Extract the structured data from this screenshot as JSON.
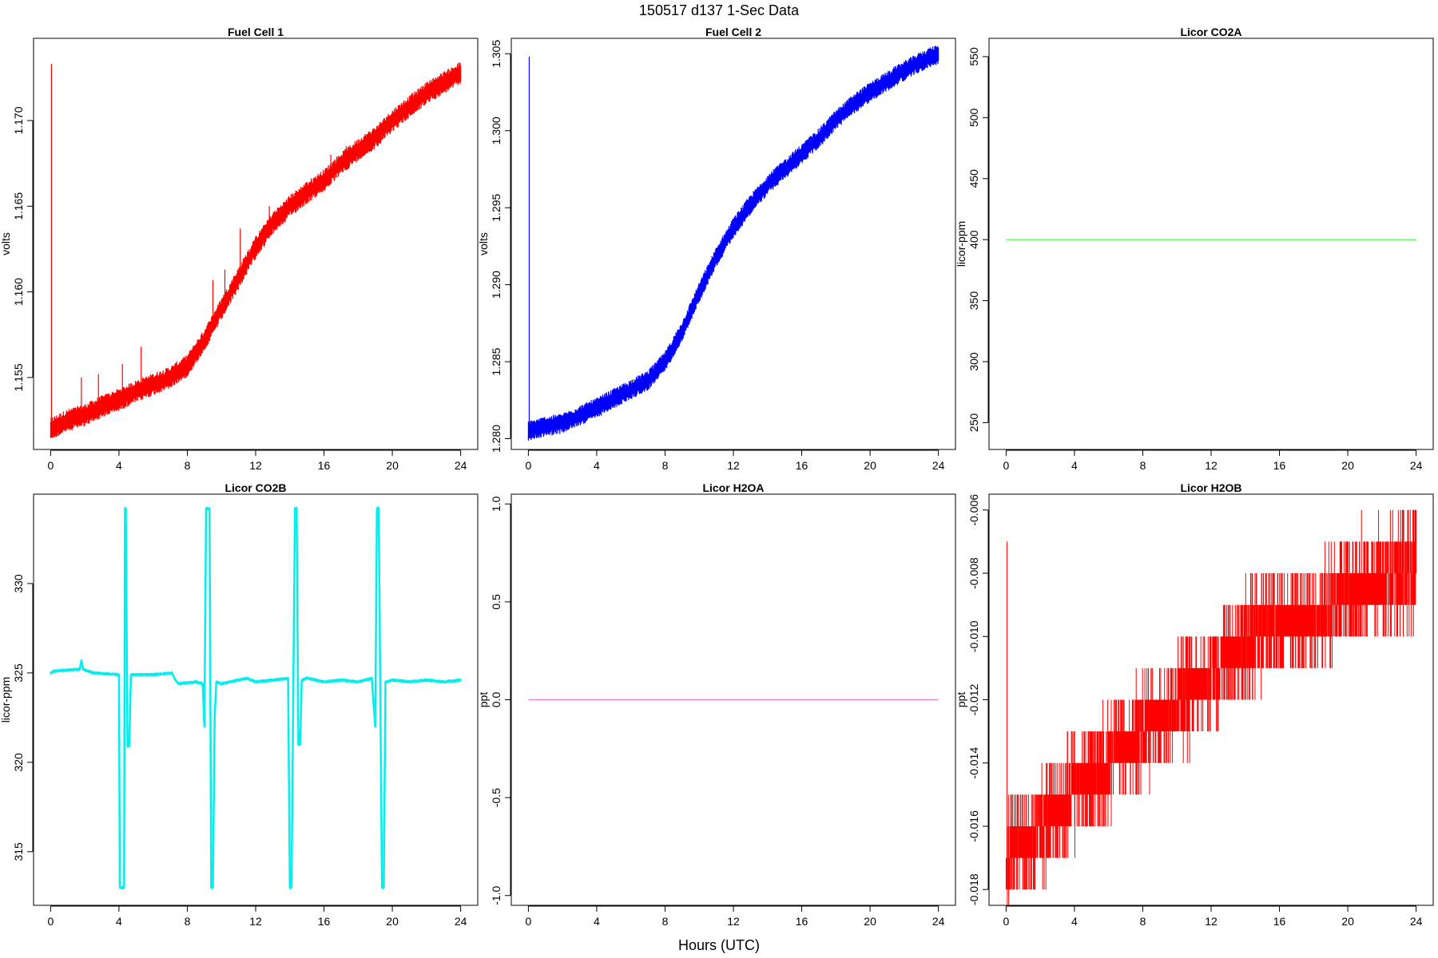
{
  "figure": {
    "title": "150517   d137   1-Sec Data",
    "xlabel": "Hours (UTC)"
  },
  "chart_data": [
    {
      "type": "line",
      "title": "Fuel Cell 1",
      "ylabel": "volts",
      "color": "#ff0000",
      "xlim": [
        -1,
        25
      ],
      "ylim": [
        1.1508,
        1.1748
      ],
      "xticks": [
        0,
        4,
        8,
        12,
        16,
        20,
        24
      ],
      "yticks": [
        1.155,
        1.16,
        1.165,
        1.17
      ],
      "yticklabels": [
        "1.155",
        "1.160",
        "1.165",
        "1.170"
      ],
      "band": 0.0006,
      "x": [
        0,
        1,
        2,
        3,
        4,
        5,
        6,
        7,
        8,
        9,
        10,
        11,
        12,
        13,
        14,
        15,
        16,
        17,
        18,
        19,
        20,
        21,
        22,
        23,
        24
      ],
      "y": [
        1.152,
        1.1525,
        1.1528,
        1.1533,
        1.1537,
        1.1542,
        1.1546,
        1.155,
        1.1557,
        1.1572,
        1.159,
        1.1608,
        1.1626,
        1.164,
        1.165,
        1.1658,
        1.1665,
        1.1675,
        1.1683,
        1.169,
        1.17,
        1.1708,
        1.1716,
        1.1722,
        1.1728
      ],
      "spikes": [
        [
          0.05,
          1.1733
        ],
        [
          1.8,
          1.155
        ],
        [
          2.8,
          1.1552
        ],
        [
          4.2,
          1.1558
        ],
        [
          5.3,
          1.1568
        ],
        [
          9.5,
          1.1607
        ],
        [
          10.2,
          1.1613
        ],
        [
          11.1,
          1.1637
        ],
        [
          12.8,
          1.165
        ],
        [
          16.4,
          1.168
        ],
        [
          17.3,
          1.1685
        ],
        [
          19.4,
          1.1696
        ]
      ]
    },
    {
      "type": "line",
      "title": "Fuel Cell 2",
      "ylabel": "volts",
      "color": "#0000ff",
      "xlim": [
        -1,
        25
      ],
      "ylim": [
        1.2793,
        1.306
      ],
      "xticks": [
        0,
        4,
        8,
        12,
        16,
        20,
        24
      ],
      "yticks": [
        1.28,
        1.285,
        1.29,
        1.295,
        1.3,
        1.305
      ],
      "yticklabels": [
        "1.280",
        "1.285",
        "1.290",
        "1.295",
        "1.300",
        "1.305"
      ],
      "band": 0.0006,
      "x": [
        0,
        1,
        2,
        3,
        4,
        5,
        6,
        7,
        8,
        9,
        10,
        11,
        12,
        13,
        14,
        15,
        16,
        17,
        18,
        19,
        20,
        21,
        22,
        23,
        24
      ],
      "y": [
        1.2805,
        1.2808,
        1.281,
        1.2815,
        1.282,
        1.2826,
        1.2832,
        1.2838,
        1.285,
        1.287,
        1.2895,
        1.2918,
        1.2937,
        1.2952,
        1.2965,
        1.2975,
        1.2985,
        1.2995,
        1.3007,
        1.3017,
        1.3025,
        1.3032,
        1.3039,
        1.3045,
        1.305
      ],
      "spikes": [
        [
          0.05,
          1.3048
        ]
      ]
    },
    {
      "type": "line",
      "title": "Licor CO2A",
      "ylabel": "licor-ppm",
      "color": "#66ff66",
      "xlim": [
        -1,
        25
      ],
      "ylim": [
        228,
        565
      ],
      "xticks": [
        0,
        4,
        8,
        12,
        16,
        20,
        24
      ],
      "yticks": [
        250,
        300,
        350,
        400,
        450,
        500,
        550
      ],
      "yticklabels": [
        "250",
        "300",
        "350",
        "400",
        "450",
        "500",
        "550"
      ],
      "band": 0,
      "x": [
        0,
        24
      ],
      "y": [
        400,
        400
      ]
    },
    {
      "type": "line",
      "title": "Licor CO2B",
      "ylabel": "licor-ppm",
      "color": "#00eeee",
      "xlim": [
        -1,
        25
      ],
      "ylim": [
        312.0,
        335.0
      ],
      "xticks": [
        0,
        4,
        8,
        12,
        16,
        20,
        24
      ],
      "yticks": [
        315,
        320,
        325,
        330
      ],
      "yticklabels": [
        "315",
        "320",
        "325",
        "330"
      ],
      "band": 0.1,
      "x": [
        0,
        0.2,
        1.7,
        1.8,
        1.9,
        2.5,
        4.0,
        4.05,
        4.1,
        4.3,
        4.35,
        4.4,
        4.5,
        4.6,
        4.7,
        6.0,
        7.1,
        7.3,
        7.5,
        8.5,
        8.9,
        9.0,
        9.1,
        9.3,
        9.4,
        9.5,
        9.6,
        9.7,
        10.0,
        11.0,
        11.5,
        12.0,
        13.0,
        13.9,
        14.0,
        14.1,
        14.3,
        14.4,
        14.5,
        14.6,
        14.7,
        15.0,
        16.0,
        17.0,
        18.0,
        18.8,
        19.0,
        19.1,
        19.2,
        19.4,
        19.5,
        19.6,
        20.0,
        21.0,
        22.0,
        23.0,
        24.0
      ],
      "y": [
        325.0,
        325.1,
        325.2,
        325.7,
        325.2,
        325.0,
        324.9,
        313.0,
        313.0,
        313.0,
        334.2,
        334.2,
        320.9,
        320.9,
        324.9,
        324.9,
        325.0,
        324.6,
        324.4,
        324.5,
        324.4,
        322.0,
        334.2,
        334.2,
        313.0,
        313.0,
        322.5,
        324.5,
        324.4,
        324.6,
        324.7,
        324.5,
        324.6,
        324.7,
        313.0,
        313.0,
        334.2,
        334.2,
        321.0,
        321.0,
        324.6,
        324.7,
        324.5,
        324.6,
        324.5,
        324.7,
        322.0,
        334.2,
        334.2,
        313.0,
        313.0,
        324.5,
        324.6,
        324.5,
        324.6,
        324.5,
        324.6
      ]
    },
    {
      "type": "line",
      "title": "Licor H2OA",
      "ylabel": "ppt",
      "color": "#dd88dd",
      "xlim": [
        -1,
        25
      ],
      "ylim": [
        -1.05,
        1.05
      ],
      "xticks": [
        0,
        4,
        8,
        12,
        16,
        20,
        24
      ],
      "yticks": [
        -1.0,
        -0.5,
        0.0,
        0.5,
        1.0
      ],
      "yticklabels": [
        "-1.0",
        "-0.5",
        "0.0",
        "0.5",
        "1.0"
      ],
      "band": 0,
      "x": [
        0,
        24
      ],
      "y": [
        0,
        0
      ]
    },
    {
      "type": "step",
      "title": "Licor H2OB",
      "ylabel": "ppt",
      "color": "#ff0000",
      "xlim": [
        -1,
        25
      ],
      "ylim": [
        -0.0185,
        -0.0055
      ],
      "xticks": [
        0,
        4,
        8,
        12,
        16,
        20,
        24
      ],
      "yticks": [
        -0.018,
        -0.016,
        -0.014,
        -0.012,
        -0.01,
        -0.008,
        -0.006
      ],
      "yticklabels": [
        "-0.018",
        "-0.016",
        "-0.014",
        "-0.012",
        "-0.010",
        "-0.008",
        "-0.006"
      ],
      "x": [
        0,
        1,
        2,
        3,
        4,
        5,
        6,
        7,
        8,
        9,
        10,
        11,
        12,
        13,
        14,
        15,
        16,
        17,
        18,
        19,
        20,
        21,
        22,
        23,
        24
      ],
      "y": [
        -0.017,
        -0.0166,
        -0.016,
        -0.0155,
        -0.0148,
        -0.0145,
        -0.014,
        -0.0134,
        -0.013,
        -0.0125,
        -0.0121,
        -0.0116,
        -0.0111,
        -0.0106,
        -0.0102,
        -0.0099,
        -0.0097,
        -0.0095,
        -0.0093,
        -0.009,
        -0.0087,
        -0.0084,
        -0.0082,
        -0.008,
        -0.0079
      ],
      "spikes": [
        [
          0.05,
          -0.007
        ],
        [
          20.8,
          -0.006
        ],
        [
          21.8,
          -0.006
        ],
        [
          23.1,
          -0.006
        ],
        [
          23.5,
          -0.006
        ]
      ]
    }
  ]
}
